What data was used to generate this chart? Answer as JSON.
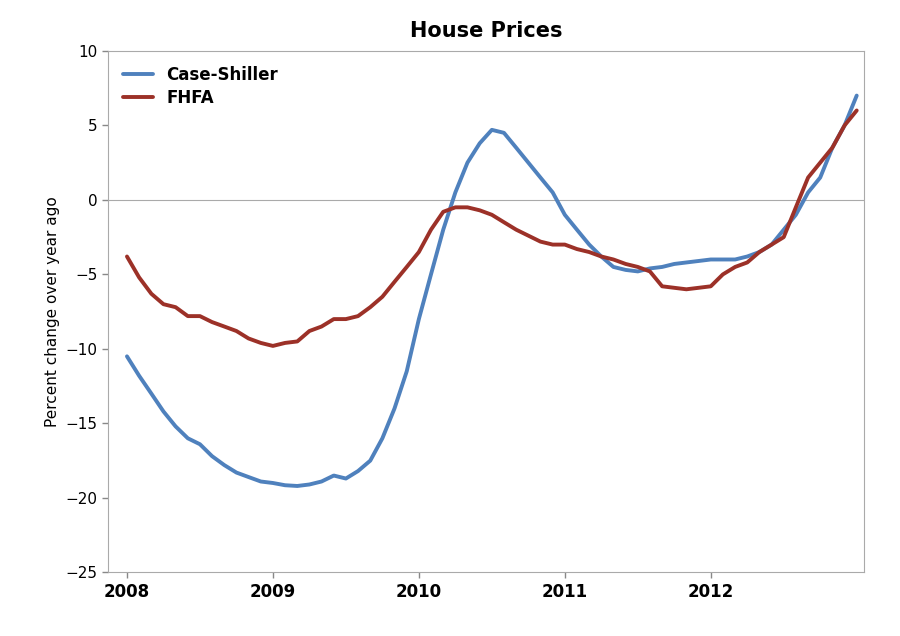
{
  "title": "House Prices",
  "ylabel": "Percent change over year ago",
  "ylim": [
    -25,
    10
  ],
  "yticks": [
    -25,
    -20,
    -15,
    -10,
    -5,
    0,
    5,
    10
  ],
  "background_color": "#ffffff",
  "title_fontsize": 15,
  "title_fontweight": "bold",
  "case_shiller_color": "#4F81BD",
  "fhfa_color": "#9C3128",
  "line_width": 2.8,
  "case_shiller": {
    "x": [
      2008.0,
      2008.083,
      2008.167,
      2008.25,
      2008.333,
      2008.417,
      2008.5,
      2008.583,
      2008.667,
      2008.75,
      2008.833,
      2008.917,
      2009.0,
      2009.083,
      2009.167,
      2009.25,
      2009.333,
      2009.417,
      2009.5,
      2009.583,
      2009.667,
      2009.75,
      2009.833,
      2009.917,
      2010.0,
      2010.083,
      2010.167,
      2010.25,
      2010.333,
      2010.417,
      2010.5,
      2010.583,
      2010.667,
      2010.75,
      2010.833,
      2010.917,
      2011.0,
      2011.083,
      2011.167,
      2011.25,
      2011.333,
      2011.417,
      2011.5,
      2011.583,
      2011.667,
      2011.75,
      2011.833,
      2011.917,
      2012.0,
      2012.083,
      2012.167,
      2012.25,
      2012.333,
      2012.417,
      2012.5,
      2012.583,
      2012.667,
      2012.75,
      2012.833,
      2012.917,
      2013.0
    ],
    "y": [
      -10.5,
      -11.8,
      -13.0,
      -14.2,
      -15.2,
      -16.0,
      -16.4,
      -17.2,
      -17.8,
      -18.3,
      -18.6,
      -18.9,
      -19.0,
      -19.15,
      -19.2,
      -19.1,
      -18.9,
      -18.5,
      -18.7,
      -18.2,
      -17.5,
      -16.0,
      -14.0,
      -11.5,
      -8.0,
      -5.0,
      -2.0,
      0.5,
      2.5,
      3.8,
      4.7,
      4.5,
      3.5,
      2.5,
      1.5,
      0.5,
      -1.0,
      -2.0,
      -3.0,
      -3.8,
      -4.5,
      -4.7,
      -4.8,
      -4.6,
      -4.5,
      -4.3,
      -4.2,
      -4.1,
      -4.0,
      -4.0,
      -4.0,
      -3.8,
      -3.5,
      -3.0,
      -2.0,
      -1.0,
      0.5,
      1.5,
      3.5,
      5.0,
      7.0
    ]
  },
  "fhfa": {
    "x": [
      2008.0,
      2008.083,
      2008.167,
      2008.25,
      2008.333,
      2008.417,
      2008.5,
      2008.583,
      2008.667,
      2008.75,
      2008.833,
      2008.917,
      2009.0,
      2009.083,
      2009.167,
      2009.25,
      2009.333,
      2009.417,
      2009.5,
      2009.583,
      2009.667,
      2009.75,
      2009.833,
      2009.917,
      2010.0,
      2010.083,
      2010.167,
      2010.25,
      2010.333,
      2010.417,
      2010.5,
      2010.583,
      2010.667,
      2010.75,
      2010.833,
      2010.917,
      2011.0,
      2011.083,
      2011.167,
      2011.25,
      2011.333,
      2011.417,
      2011.5,
      2011.583,
      2011.667,
      2011.75,
      2011.833,
      2011.917,
      2012.0,
      2012.083,
      2012.167,
      2012.25,
      2012.333,
      2012.417,
      2012.5,
      2012.583,
      2012.667,
      2012.75,
      2012.833,
      2012.917,
      2013.0
    ],
    "y": [
      -3.8,
      -5.2,
      -6.3,
      -7.0,
      -7.2,
      -7.8,
      -7.8,
      -8.2,
      -8.5,
      -8.8,
      -9.3,
      -9.6,
      -9.8,
      -9.6,
      -9.5,
      -8.8,
      -8.5,
      -8.0,
      -8.0,
      -7.8,
      -7.2,
      -6.5,
      -5.5,
      -4.5,
      -3.5,
      -2.0,
      -0.8,
      -0.5,
      -0.5,
      -0.7,
      -1.0,
      -1.5,
      -2.0,
      -2.4,
      -2.8,
      -3.0,
      -3.0,
      -3.3,
      -3.5,
      -3.8,
      -4.0,
      -4.3,
      -4.5,
      -4.8,
      -5.8,
      -5.9,
      -6.0,
      -5.9,
      -5.8,
      -5.0,
      -4.5,
      -4.2,
      -3.5,
      -3.0,
      -2.5,
      -0.5,
      1.5,
      2.5,
      3.5,
      5.0,
      6.0
    ]
  },
  "xlim": [
    2007.87,
    2013.05
  ],
  "xtick_positions": [
    2008,
    2009,
    2010,
    2011,
    2012
  ],
  "xtick_labels": [
    "2008",
    "2009",
    "2010",
    "2011",
    "2012"
  ]
}
